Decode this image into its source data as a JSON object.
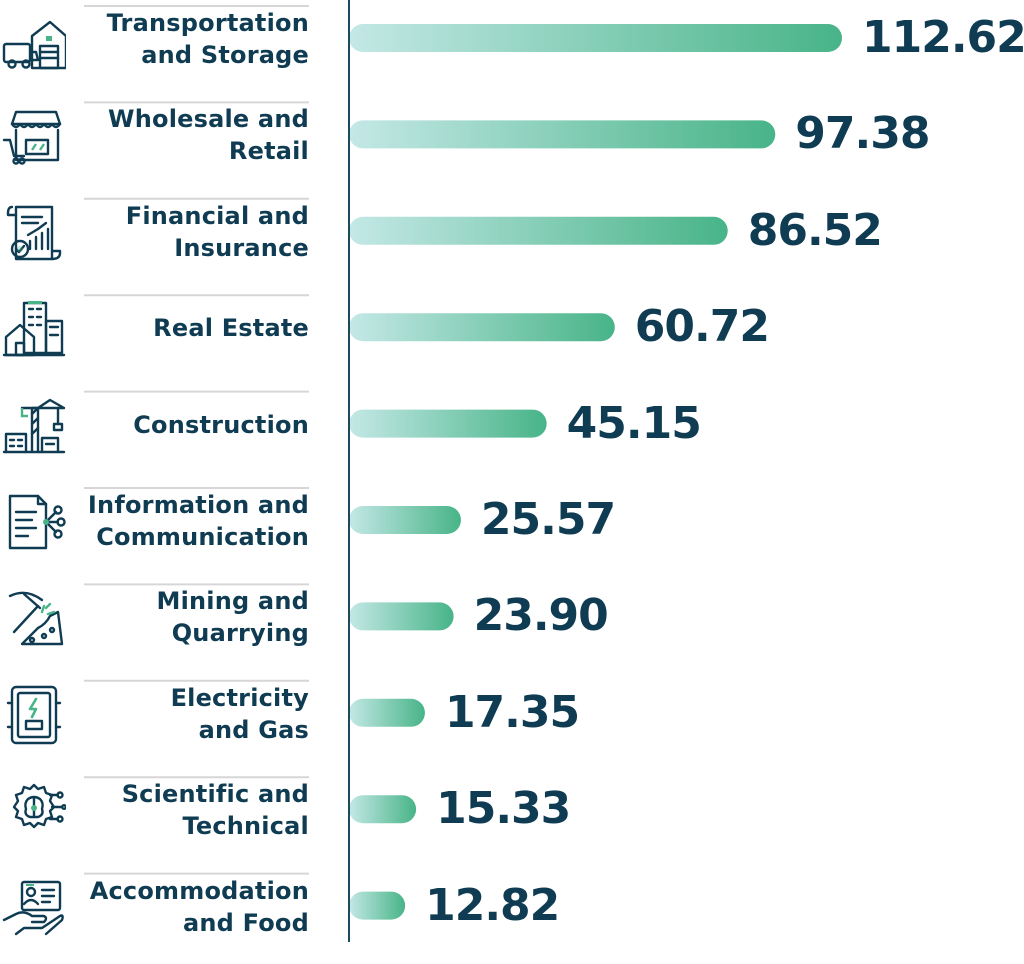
{
  "chart_data": {
    "type": "bar",
    "orientation": "horizontal",
    "categories": [
      [
        "Transportation",
        "and Storage"
      ],
      [
        "Wholesale and",
        "Retail"
      ],
      [
        "Financial and",
        "Insurance"
      ],
      [
        "Real Estate"
      ],
      [
        "Construction"
      ],
      [
        "Information and",
        "Communication"
      ],
      [
        "Mining and",
        "Quarrying"
      ],
      [
        "Electricity",
        "and Gas"
      ],
      [
        "Scientific and",
        "Technical"
      ],
      [
        "Accommodation",
        "and Food"
      ]
    ],
    "values": [
      112.62,
      97.38,
      86.52,
      60.72,
      45.15,
      25.57,
      23.9,
      17.35,
      15.33,
      12.82
    ],
    "value_labels": [
      "112.62",
      "97.38",
      "86.52",
      "60.72",
      "45.15",
      "25.57",
      "23.90",
      "17.35",
      "15.33",
      "12.82"
    ],
    "icons": [
      "warehouse-truck-icon",
      "storefront-icon",
      "financial-report-icon",
      "buildings-icon",
      "construction-crane-icon",
      "document-network-icon",
      "pickaxe-icon",
      "electrical-panel-icon",
      "brain-gear-icon",
      "hand-card-icon"
    ],
    "title": "",
    "xlabel": "",
    "ylabel": "",
    "grid": false,
    "legend": "none",
    "colors": {
      "bar_start": "#c4e8e6",
      "bar_end": "#48b488",
      "text": "#0f3c52",
      "axis": "#1e4a5e",
      "divider": "#d6d6d6",
      "icon": "#0f3c52",
      "icon_accent": "#48b488"
    }
  }
}
